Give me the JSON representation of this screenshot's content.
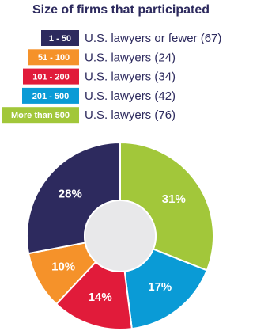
{
  "chart_data": {
    "type": "donut",
    "title": "Size of firms that participated",
    "categories": [
      "1 - 50",
      "51 - 100",
      "101 - 200",
      "201 - 500",
      "More than 500"
    ],
    "legend_labels": [
      "U.S. lawyers or fewer (67)",
      "U.S. lawyers (24)",
      "U.S. lawyers (34)",
      "U.S. lawyers (42)",
      "U.S. lawyers (76)"
    ],
    "values": [
      28,
      10,
      14,
      17,
      31
    ],
    "value_labels": [
      "28%",
      "10%",
      "14%",
      "17%",
      "31%"
    ],
    "colors": [
      "#2d2a5e",
      "#f5922a",
      "#e11b3a",
      "#0a9bd6",
      "#a2c73a"
    ]
  }
}
